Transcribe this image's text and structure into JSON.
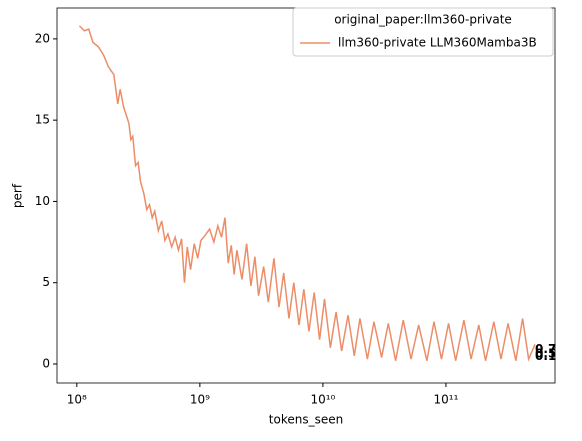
{
  "chart_data": {
    "type": "line",
    "xlabel": "tokens_seen",
    "ylabel": "perf",
    "xscale": "log",
    "xlim": [
      69000000.0,
      770000000000.0
    ],
    "xticks": [
      {
        "value": 100000000.0,
        "label": "10⁸"
      },
      {
        "value": 1000000000.0,
        "label": "10⁹"
      },
      {
        "value": 10000000000.0,
        "label": "10¹⁰"
      },
      {
        "value": 100000000000.0,
        "label": "10¹¹"
      }
    ],
    "ylim": [
      -1.17,
      21.9
    ],
    "yticks": [
      0,
      5,
      10,
      15,
      20
    ],
    "legend_title": "original_paper:llm360-private",
    "legend_loc": "upper right",
    "x": [
      105000000.0,
      115000000.0,
      125000000.0,
      135000000.0,
      150000000.0,
      165000000.0,
      180000000.0,
      200000000.0,
      215000000.0,
      225000000.0,
      240000000.0,
      255000000.0,
      265000000.0,
      275000000.0,
      285000000.0,
      300000000.0,
      315000000.0,
      330000000.0,
      350000000.0,
      370000000.0,
      390000000.0,
      410000000.0,
      430000000.0,
      460000000.0,
      490000000.0,
      520000000.0,
      550000000.0,
      590000000.0,
      630000000.0,
      670000000.0,
      710000000.0,
      750000000.0,
      790000000.0,
      840000000.0,
      900000000.0,
      960000000.0,
      1020000000.0,
      1100000000.0,
      1200000000.0,
      1300000000.0,
      1400000000.0,
      1500000000.0,
      1600000000.0,
      1700000000.0,
      1800000000.0,
      1900000000.0,
      2000000000.0,
      2200000000.0,
      2400000000.0,
      2600000000.0,
      2800000000.0,
      3000000000.0,
      3300000000.0,
      3600000000.0,
      4000000000.0,
      4400000000.0,
      4800000000.0,
      5300000000.0,
      5800000000.0,
      6400000000.0,
      7000000000.0,
      7700000000.0,
      8500000000.0,
      9400000000.0,
      10300000000.0,
      11500000000.0,
      12800000000.0,
      14200000000.0,
      16000000000.0,
      18000000000.0,
      20000000000.0,
      23000000000.0,
      26000000000.0,
      30000000000.0,
      34000000000.0,
      39000000000.0,
      45000000000.0,
      52000000000.0,
      60000000000.0,
      70000000000.0,
      80000000000.0,
      92000000000.0,
      105000000000.0,
      120000000000.0,
      140000000000.0,
      160000000000.0,
      185000000000.0,
      210000000000.0,
      245000000000.0,
      280000000000.0,
      320000000000.0,
      370000000000.0,
      420000000000.0,
      470000000000.0,
      530000000000.0
    ],
    "series": [
      {
        "name": "llm360-private LLM360Mamba3B",
        "color": "#ec8d68",
        "values": [
          20.8,
          20.5,
          20.6,
          19.8,
          19.5,
          19.0,
          18.3,
          17.8,
          16.0,
          16.9,
          15.8,
          15.2,
          14.8,
          13.8,
          14.0,
          12.2,
          12.4,
          11.2,
          10.5,
          9.5,
          9.8,
          9.0,
          9.4,
          8.2,
          8.8,
          7.6,
          8.0,
          7.2,
          7.8,
          7.0,
          7.7,
          5.0,
          7.2,
          5.8,
          7.4,
          6.5,
          7.6,
          7.9,
          8.3,
          7.5,
          8.5,
          7.8,
          9.0,
          6.2,
          7.3,
          5.5,
          7.0,
          5.2,
          7.4,
          4.8,
          6.6,
          4.2,
          6.0,
          3.8,
          6.5,
          3.5,
          5.6,
          2.8,
          5.0,
          2.4,
          4.6,
          2.0,
          4.4,
          1.5,
          4.0,
          1.0,
          3.2,
          0.8,
          3.0,
          0.5,
          2.8,
          0.3,
          2.6,
          0.4,
          2.5,
          0.2,
          2.7,
          0.3,
          2.4,
          0.2,
          2.6,
          0.3,
          2.5,
          0.2,
          2.7,
          0.3,
          2.4,
          0.2,
          2.6,
          0.3,
          2.5,
          0.2,
          2.8,
          0.3,
          1.2
        ]
      }
    ],
    "annotations": [
      {
        "text": "0.7",
        "x": 530000000000.0,
        "y": 0.9
      },
      {
        "text": "0.5",
        "x": 530000000000.0,
        "y": 0.6
      },
      {
        "text": "0.1",
        "x": 530000000000.0,
        "y": 0.45
      }
    ]
  }
}
